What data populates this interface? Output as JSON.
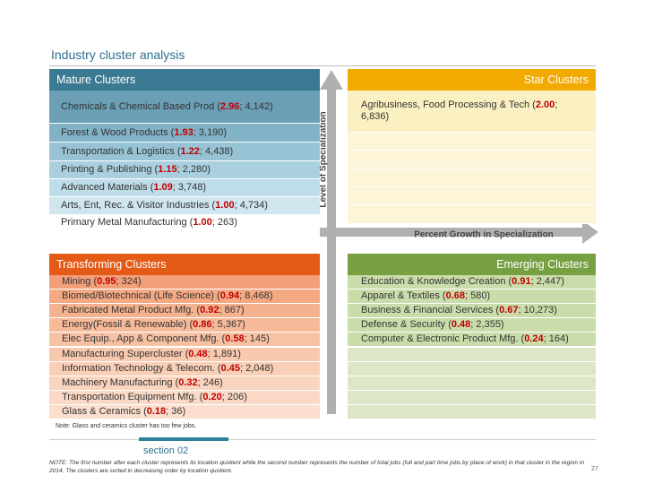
{
  "header": {
    "title": "Industry cluster analysis"
  },
  "quadrants": {
    "mature": {
      "title": "Mature Clusters",
      "items": [
        {
          "name": "Chemicals & Chemical Based Prod (",
          "lq": "2.96",
          "jobs": "; 4,142)"
        },
        {
          "name": "Forest & Wood Products (",
          "lq": "1.93",
          "jobs": "; 3,190)"
        },
        {
          "name": "Transportation & Logistics (",
          "lq": "1.22",
          "jobs": "; 4,438)"
        },
        {
          "name": "Printing & Publishing (",
          "lq": "1.15",
          "jobs": "; 2,280)"
        },
        {
          "name": "Advanced Materials (",
          "lq": "1.09",
          "jobs": "; 3,748)"
        },
        {
          "name": "Arts, Ent, Rec. & Visitor Industries (",
          "lq": "1.00",
          "jobs": "; 4,734)"
        },
        {
          "name": "Primary Metal Manufacturing (",
          "lq": "1.00",
          "jobs": "; 263)"
        }
      ]
    },
    "star": {
      "title": "Star Clusters",
      "items": [
        {
          "name": "Agribusiness, Food Processing & Tech (",
          "lq": "2.00",
          "jobs": "; 6,836)"
        }
      ]
    },
    "transforming": {
      "title": "Transforming Clusters",
      "items": [
        {
          "name": "Mining (",
          "lq": "0.95",
          "jobs": "; 324)"
        },
        {
          "name": "Biomed/Biotechnical (Life Science) (",
          "lq": "0.94",
          "jobs": "; 8,468)"
        },
        {
          "name": "Fabricated Metal Product Mfg. (",
          "lq": "0.92",
          "jobs": "; 867)"
        },
        {
          "name": "Energy(Fossil & Renewable) (",
          "lq": "0.86",
          "jobs": "; 5,367)"
        },
        {
          "name": "Elec Equip., App & Component Mfg. (",
          "lq": "0.58",
          "jobs": "; 145)"
        },
        {
          "name": "Manufacturing Supercluster (",
          "lq": "0.48",
          "jobs": "; 1,891)"
        },
        {
          "name": "Information Technology & Telecom. (",
          "lq": "0.45",
          "jobs": "; 2,048)"
        },
        {
          "name": "Machinery Manufacturing (",
          "lq": "0.32",
          "jobs": "; 246)"
        },
        {
          "name": "Transportation Equipment Mfg. (",
          "lq": "0.20",
          "jobs": "; 206)"
        },
        {
          "name": "Glass & Ceramics (",
          "lq": "0.18",
          "jobs": "; 36)"
        }
      ]
    },
    "emerging": {
      "title": "Emerging Clusters",
      "items": [
        {
          "name": "Education & Knowledge Creation (",
          "lq": "0.91",
          "jobs": "; 2,447)"
        },
        {
          "name": "Apparel & Textiles (",
          "lq": "0.68",
          "jobs": "; 580)"
        },
        {
          "name": "Business & Financial Services (",
          "lq": "0.67",
          "jobs": "; 10,273)"
        },
        {
          "name": "Defense & Security (",
          "lq": "0.48",
          "jobs": "; 2,355)"
        },
        {
          "name": "Computer & Electronic Product Mfg. (",
          "lq": "0.24",
          "jobs": "; 164)"
        }
      ]
    }
  },
  "axes": {
    "y_label": "Level of Specialization",
    "x_label": "Percent Growth in Specialization"
  },
  "note": "Note: Glass and ceramics cluster has too few jobs.",
  "footer": {
    "section": "section 02",
    "note": "NOTE: The first number after each cluster represents its location quotient while the second number represents the number of total jobs (full and part time jobs by place of work) in that cluster in the region in 2014. The clusters are sorted in decreasing order by location quotient.",
    "page": "27"
  }
}
